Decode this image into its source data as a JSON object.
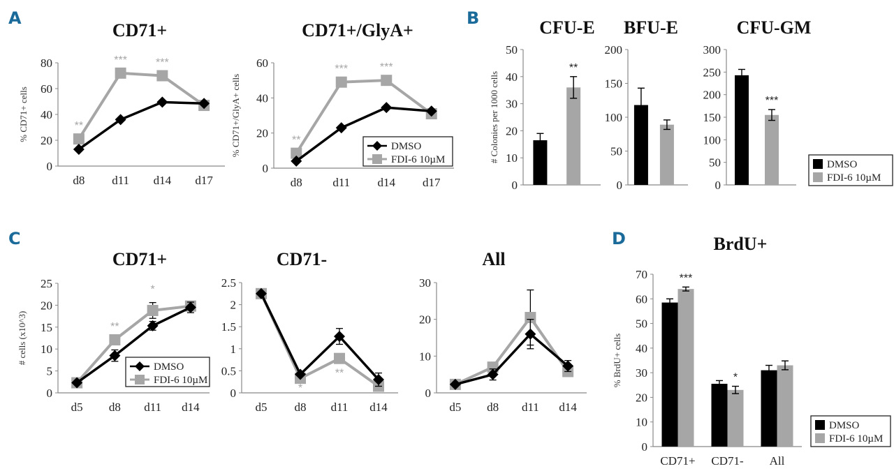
{
  "figure": {
    "panels": [
      {
        "letter": "A"
      },
      {
        "letter": "B"
      },
      {
        "letter": "C"
      },
      {
        "letter": "D"
      }
    ]
  },
  "legend": {
    "series": [
      {
        "name": "DMSO",
        "color": "#000000",
        "marker": "diamond"
      },
      {
        "name": "FDI-6 10µM",
        "color": "#a6a6a6",
        "marker": "square"
      }
    ]
  },
  "chart_data": [
    {
      "id": "A1",
      "panel": "A",
      "type": "line",
      "title": "CD71+",
      "xlabel": "",
      "ylabel": "% CD71+ cells",
      "categories": [
        "d8",
        "d11",
        "d14",
        "d17"
      ],
      "ylim": [
        0,
        80
      ],
      "yticks": [
        0,
        20,
        40,
        60,
        80
      ],
      "series": [
        {
          "name": "DMSO",
          "values": [
            13,
            36,
            49.5,
            48.5
          ]
        },
        {
          "name": "FDI-6 10µM",
          "values": [
            21,
            72,
            70,
            47
          ]
        }
      ],
      "annotations": [
        {
          "category": "d8",
          "text": "**",
          "color": "#a6a6a6"
        },
        {
          "category": "d11",
          "text": "***",
          "color": "#a6a6a6"
        },
        {
          "category": "d14",
          "text": "***",
          "color": "#a6a6a6"
        }
      ],
      "legend": "none"
    },
    {
      "id": "A2",
      "panel": "A",
      "type": "line",
      "title": "CD71+/GlyA+",
      "xlabel": "",
      "ylabel": "% CD71+/GlyA+ cells",
      "categories": [
        "d8",
        "d11",
        "d14",
        "d17"
      ],
      "ylim": [
        0,
        60
      ],
      "yticks": [
        0,
        20,
        40,
        60
      ],
      "series": [
        {
          "name": "DMSO",
          "values": [
            4,
            23,
            34.5,
            32.5
          ]
        },
        {
          "name": "FDI-6 10µM",
          "values": [
            8.5,
            49,
            50,
            31
          ]
        }
      ],
      "annotations": [
        {
          "category": "d8",
          "text": "**",
          "color": "#a6a6a6"
        },
        {
          "category": "d11",
          "text": "***",
          "color": "#a6a6a6"
        },
        {
          "category": "d14",
          "text": "***",
          "color": "#a6a6a6"
        }
      ],
      "legend": "bottom-right"
    },
    {
      "id": "B1",
      "panel": "B",
      "type": "bar",
      "title": "CFU-E",
      "xlabel": "",
      "ylabel": "# Colonies per 1000 cells",
      "categories": [
        ""
      ],
      "ylim": [
        0,
        50
      ],
      "yticks": [
        0,
        10,
        20,
        30,
        40,
        50
      ],
      "series": [
        {
          "name": "DMSO",
          "values": [
            16.5
          ],
          "errors": [
            2.5
          ]
        },
        {
          "name": "FDI-6 10µM",
          "values": [
            36
          ],
          "errors": [
            4
          ]
        }
      ],
      "annotations": [
        {
          "series": 1,
          "text": "**",
          "color": "#222222"
        }
      ],
      "legend": "none"
    },
    {
      "id": "B2",
      "panel": "B",
      "type": "bar",
      "title": "BFU-E",
      "xlabel": "",
      "ylabel": "",
      "categories": [
        ""
      ],
      "ylim": [
        0,
        200
      ],
      "yticks": [
        0,
        50,
        100,
        150,
        200
      ],
      "series": [
        {
          "name": "DMSO",
          "values": [
            118
          ],
          "errors": [
            25
          ]
        },
        {
          "name": "FDI-6 10µM",
          "values": [
            89
          ],
          "errors": [
            7
          ]
        }
      ],
      "annotations": [],
      "legend": "none"
    },
    {
      "id": "B3",
      "panel": "B",
      "type": "bar",
      "title": "CFU-GM",
      "xlabel": "",
      "ylabel": "",
      "categories": [
        ""
      ],
      "ylim": [
        0,
        300
      ],
      "yticks": [
        0,
        50,
        100,
        150,
        200,
        250,
        300
      ],
      "series": [
        {
          "name": "DMSO",
          "values": [
            243
          ],
          "errors": [
            13
          ]
        },
        {
          "name": "FDI-6 10µM",
          "values": [
            155
          ],
          "errors": [
            12
          ]
        }
      ],
      "annotations": [
        {
          "series": 1,
          "text": "***",
          "color": "#222222"
        }
      ],
      "legend": "bottom-right"
    },
    {
      "id": "C1",
      "panel": "C",
      "type": "line",
      "title": "CD71+",
      "xlabel": "",
      "ylabel": "# cells (x10^3)",
      "categories": [
        "d5",
        "d8",
        "d11",
        "d14"
      ],
      "ylim": [
        0,
        25
      ],
      "yticks": [
        0,
        5,
        10,
        15,
        20,
        25
      ],
      "series": [
        {
          "name": "DMSO",
          "values": [
            2.3,
            8.5,
            15.3,
            19.5
          ],
          "errors": [
            0,
            1.3,
            1.0,
            1.2
          ]
        },
        {
          "name": "FDI-6 10µM",
          "values": [
            2.3,
            12.1,
            18.8,
            19.8
          ],
          "errors": [
            0,
            0,
            1.8,
            0
          ]
        }
      ],
      "annotations": [
        {
          "category": "d8",
          "text": "**",
          "color": "#a6a6a6"
        },
        {
          "category": "d11",
          "text": "*",
          "color": "#a6a6a6"
        }
      ],
      "legend": "bottom-right"
    },
    {
      "id": "C2",
      "panel": "C",
      "type": "line",
      "title": "CD71-",
      "xlabel": "",
      "ylabel": "",
      "categories": [
        "d5",
        "d8",
        "d11",
        "d14"
      ],
      "ylim": [
        0,
        2.5
      ],
      "yticks": [
        0,
        0.5,
        1,
        1.5,
        2,
        2.5
      ],
      "series": [
        {
          "name": "DMSO",
          "values": [
            2.25,
            0.42,
            1.28,
            0.3
          ],
          "errors": [
            0,
            0,
            0.18,
            0.15
          ]
        },
        {
          "name": "FDI-6 10µM",
          "values": [
            2.25,
            0.33,
            0.78,
            0.15
          ],
          "errors": [
            0,
            0,
            0,
            0
          ]
        }
      ],
      "annotations": [
        {
          "category": "d8",
          "text": "*",
          "color": "#a6a6a6",
          "position": "below"
        },
        {
          "category": "d11",
          "text": "**",
          "color": "#a6a6a6",
          "position": "below"
        }
      ],
      "legend": "none"
    },
    {
      "id": "C3",
      "panel": "C",
      "type": "line",
      "title": "All",
      "xlabel": "",
      "ylabel": "",
      "categories": [
        "d5",
        "d8",
        "d11",
        "d14"
      ],
      "ylim": [
        0,
        30
      ],
      "yticks": [
        0,
        10,
        20,
        30
      ],
      "series": [
        {
          "name": "DMSO",
          "values": [
            2.3,
            5,
            16,
            7.3
          ],
          "errors": [
            0,
            1.5,
            4,
            1.5
          ]
        },
        {
          "name": "FDI-6 10µM",
          "values": [
            2.3,
            7,
            20.5,
            5.8
          ],
          "errors": [
            0,
            0,
            7.5,
            0
          ]
        }
      ],
      "annotations": [],
      "legend": "none"
    },
    {
      "id": "D1",
      "panel": "D",
      "type": "bar",
      "title": "BrdU+",
      "xlabel": "",
      "ylabel": "% BrdU+ cells",
      "categories": [
        "CD71+",
        "CD71-",
        "All"
      ],
      "ylim": [
        0,
        70
      ],
      "yticks": [
        0,
        10,
        20,
        30,
        40,
        50,
        60,
        70
      ],
      "series": [
        {
          "name": "DMSO",
          "values": [
            58.5,
            25.5,
            31
          ],
          "errors": [
            1.5,
            1.3,
            2
          ]
        },
        {
          "name": "FDI-6 10µM",
          "values": [
            64,
            23,
            33
          ],
          "errors": [
            0.8,
            1.5,
            1.8
          ]
        }
      ],
      "annotations": [
        {
          "category": "CD71+",
          "series": 1,
          "text": "***",
          "color": "#222222"
        },
        {
          "category": "CD71-",
          "series": 1,
          "text": "*",
          "color": "#222222"
        }
      ],
      "legend": "bottom-right"
    }
  ]
}
